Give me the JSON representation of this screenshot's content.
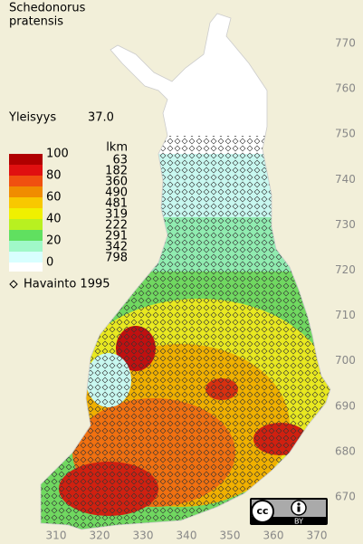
{
  "title": [
    "Schedonorus",
    "pratensis"
  ],
  "frequency": {
    "label": "Yleisyys",
    "value": "37.0"
  },
  "legend": {
    "title": "lkm",
    "levels": [
      100,
      80,
      60,
      40,
      20,
      0
    ],
    "colors": [
      "#b00000",
      "#e01010",
      "#f05010",
      "#f08c00",
      "#f8c800",
      "#f0f000",
      "#b8f020",
      "#60e060",
      "#a0f8c8",
      "#d8ffff"
    ],
    "counts": [
      "63",
      "182",
      "360",
      "490",
      "481",
      "319",
      "222",
      "291",
      "342",
      "798"
    ],
    "zero_color": "#ffffff"
  },
  "observation": {
    "label": "Havainto 1995"
  },
  "grid": {
    "xticks": [
      310,
      320,
      330,
      340,
      350,
      360,
      370
    ],
    "yticks": [
      670,
      680,
      690,
      700,
      710,
      720,
      730,
      740,
      750,
      760,
      770
    ]
  },
  "badge": {
    "cc": "cc",
    "by": "BY"
  }
}
